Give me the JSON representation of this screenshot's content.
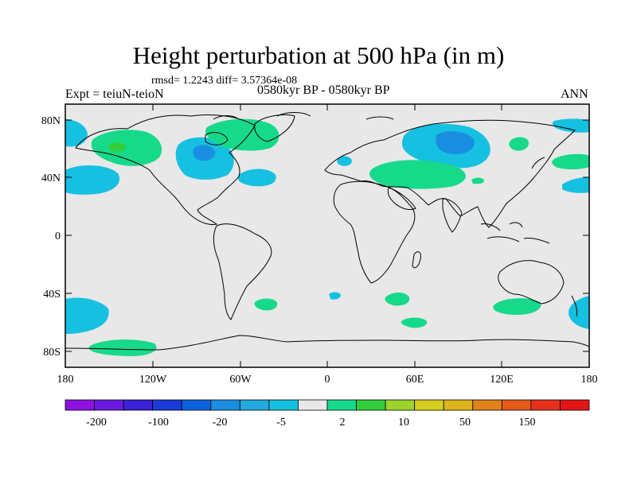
{
  "title": "Height perturbation at 500 hPa (in m)",
  "stats": "rmsd= 1.2243 diff= 3.57364e-08",
  "experiment": "Expt = teiuN-teioN",
  "period": "0580kyr BP - 0580kyr BP",
  "season": "ANN",
  "lat_labels": [
    "80N",
    "40N",
    "0",
    "40S",
    "80S"
  ],
  "lon_labels": [
    "180",
    "120W",
    "60W",
    "0",
    "60E",
    "120E",
    "180"
  ],
  "colorbar": {
    "labels": [
      "-200",
      "-100",
      "-20",
      "-5",
      "2",
      "10",
      "50",
      "150"
    ],
    "colors": [
      "#8f12e0",
      "#6a1ae0",
      "#3a22d6",
      "#1b3ad8",
      "#0a63dd",
      "#1a8ee0",
      "#22a9df",
      "#16c0e1",
      "#e8e8e8",
      "#17d98a",
      "#33cd3a",
      "#9bd42b",
      "#d6cf22",
      "#dcb41d",
      "#e0831a",
      "#e45a1b",
      "#e5311b",
      "#e31616"
    ]
  },
  "colors": {
    "land_background": "#e8e8e8",
    "blue_anomaly": "#16c0e1",
    "deep_blue_anomaly": "#1a8ee0",
    "green_anomaly": "#17d98a",
    "yellow_green_anomaly": "#33cd3a"
  }
}
